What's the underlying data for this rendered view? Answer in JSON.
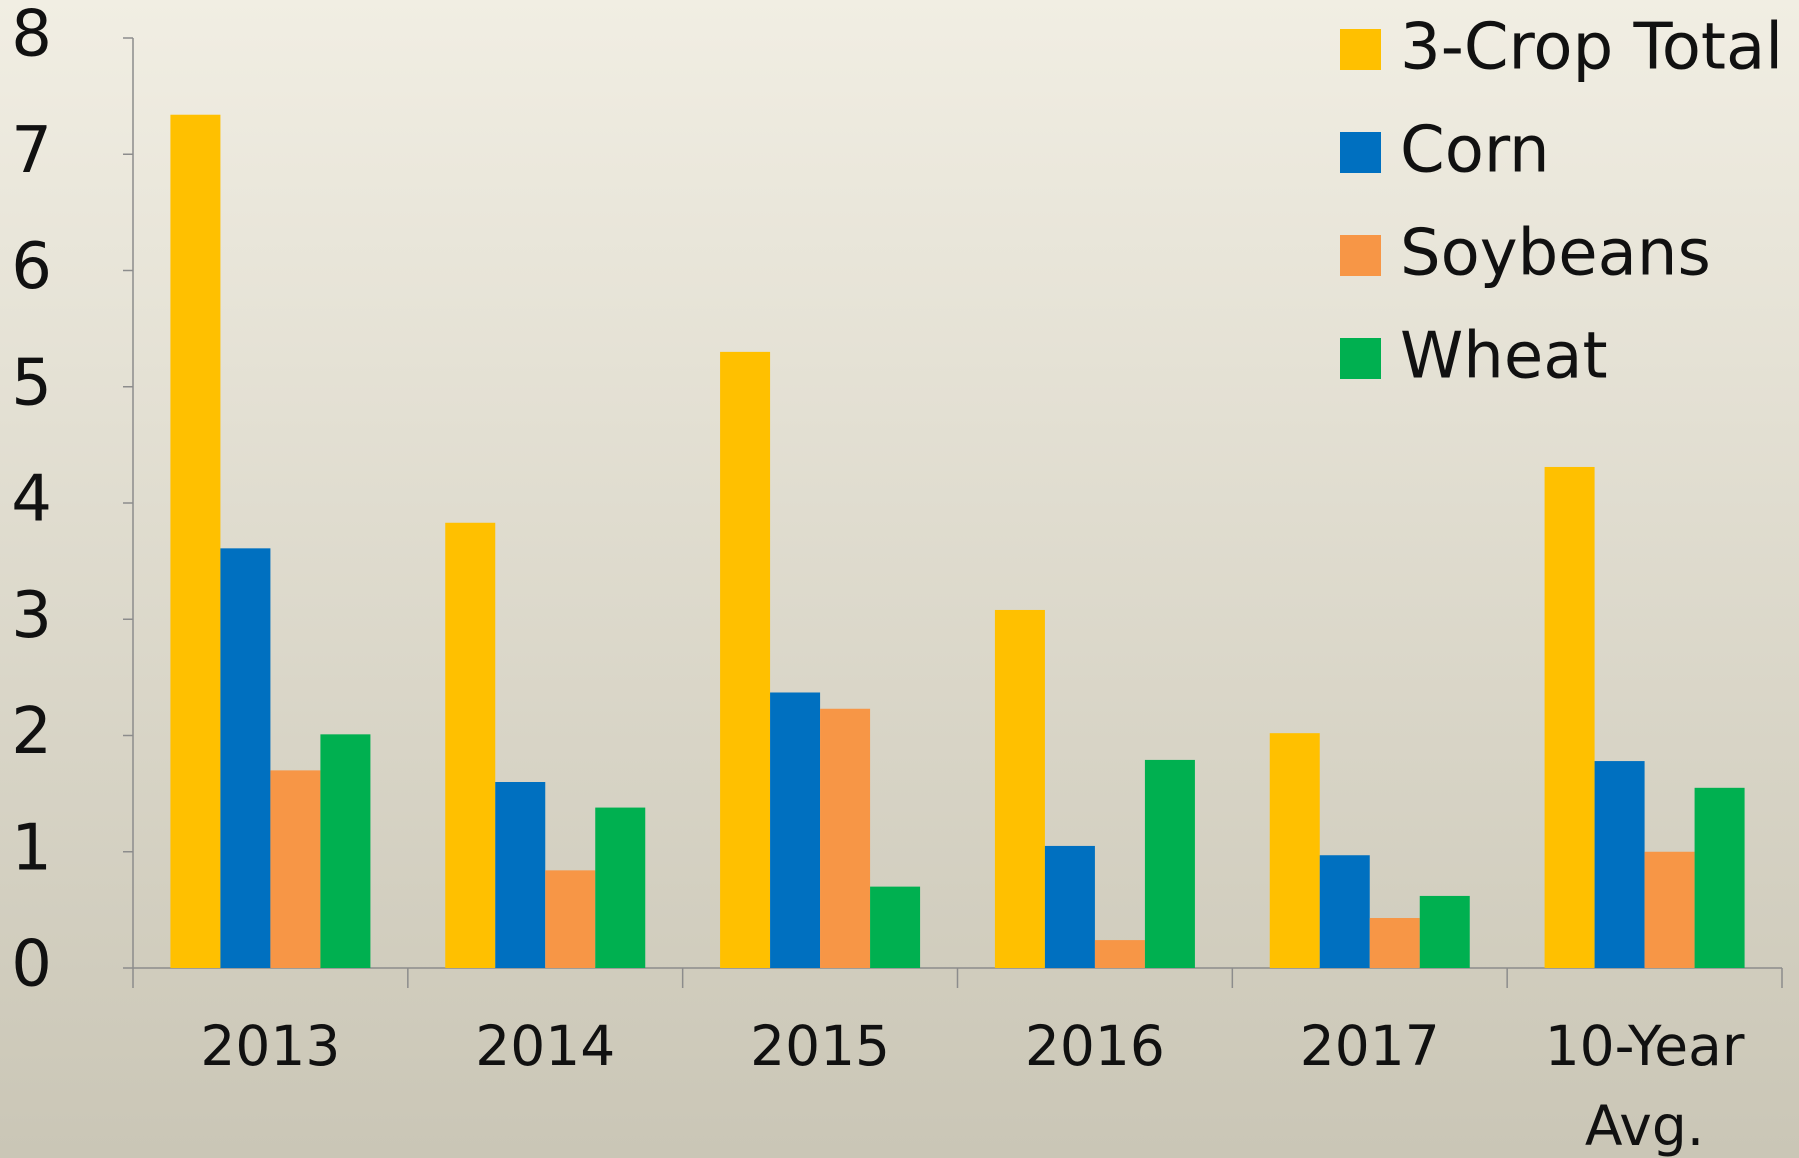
{
  "chart_data": {
    "type": "bar",
    "categories": [
      "2013",
      "2014",
      "2015",
      "2016",
      "2017",
      "10-Year Avg."
    ],
    "series": [
      {
        "name": "3-Crop Total",
        "color": "#ffc000",
        "values": [
          7.34,
          3.83,
          5.3,
          3.08,
          2.02,
          4.31
        ]
      },
      {
        "name": "Corn",
        "color": "#0070c0",
        "values": [
          3.61,
          1.6,
          2.37,
          1.05,
          0.97,
          1.78
        ]
      },
      {
        "name": "Soybeans",
        "color": "#f79646",
        "values": [
          1.7,
          0.84,
          2.23,
          0.24,
          0.43,
          1.0
        ]
      },
      {
        "name": "Wheat",
        "color": "#00b050",
        "values": [
          2.01,
          1.38,
          0.7,
          1.79,
          0.62,
          1.55
        ]
      }
    ],
    "ylim": [
      0,
      8
    ],
    "yticks": [
      0,
      1,
      2,
      3,
      4,
      5,
      6,
      7,
      8
    ],
    "grid": false,
    "legend": "top-right"
  }
}
